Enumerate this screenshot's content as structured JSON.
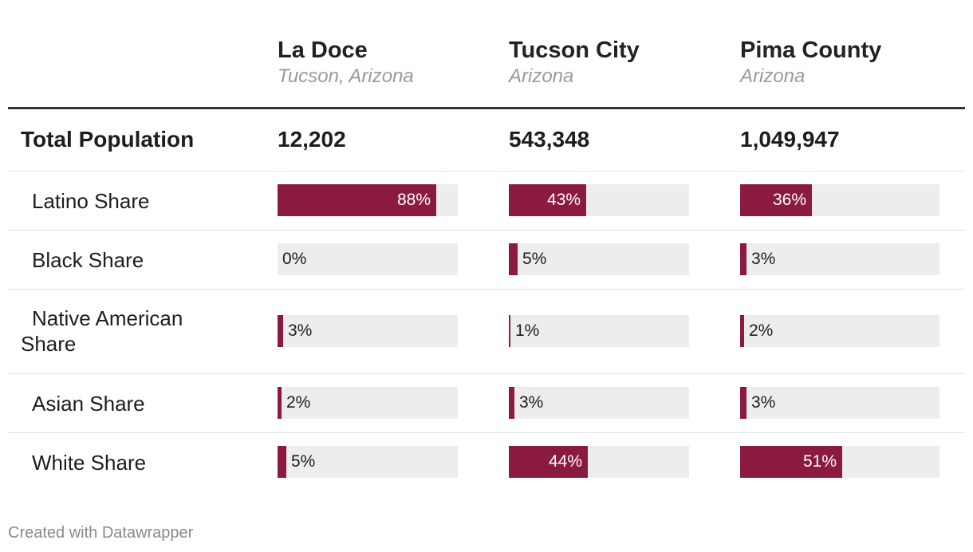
{
  "chart_data": {
    "type": "table",
    "columns": [
      {
        "title": "La Doce",
        "subtitle": "Tucson, Arizona"
      },
      {
        "title": "Tucson City",
        "subtitle": "Arizona"
      },
      {
        "title": "Pima County",
        "subtitle": "Arizona"
      }
    ],
    "total_row": {
      "label": "Total Population",
      "values": [
        "12,202",
        "543,348",
        "1,049,947"
      ]
    },
    "rows": [
      {
        "label": "Latino Share",
        "values": [
          88,
          43,
          36
        ],
        "labels": [
          "88%",
          "43%",
          "36%"
        ]
      },
      {
        "label": "Black Share",
        "values": [
          0,
          5,
          3
        ],
        "labels": [
          "0%",
          "5%",
          "3%"
        ]
      },
      {
        "label": "Native American Share",
        "values": [
          3,
          1,
          2
        ],
        "labels": [
          "3%",
          "1%",
          "2%"
        ]
      },
      {
        "label": "Asian Share",
        "values": [
          2,
          3,
          3
        ],
        "labels": [
          "2%",
          "3%",
          "3%"
        ]
      },
      {
        "label": "White Share",
        "values": [
          5,
          44,
          51
        ],
        "labels": [
          "5%",
          "44%",
          "51%"
        ]
      }
    ],
    "bar_color": "#8b1a3f",
    "track_color": "#ededed",
    "max_value": 100
  },
  "footer": "Created with Datawrapper"
}
